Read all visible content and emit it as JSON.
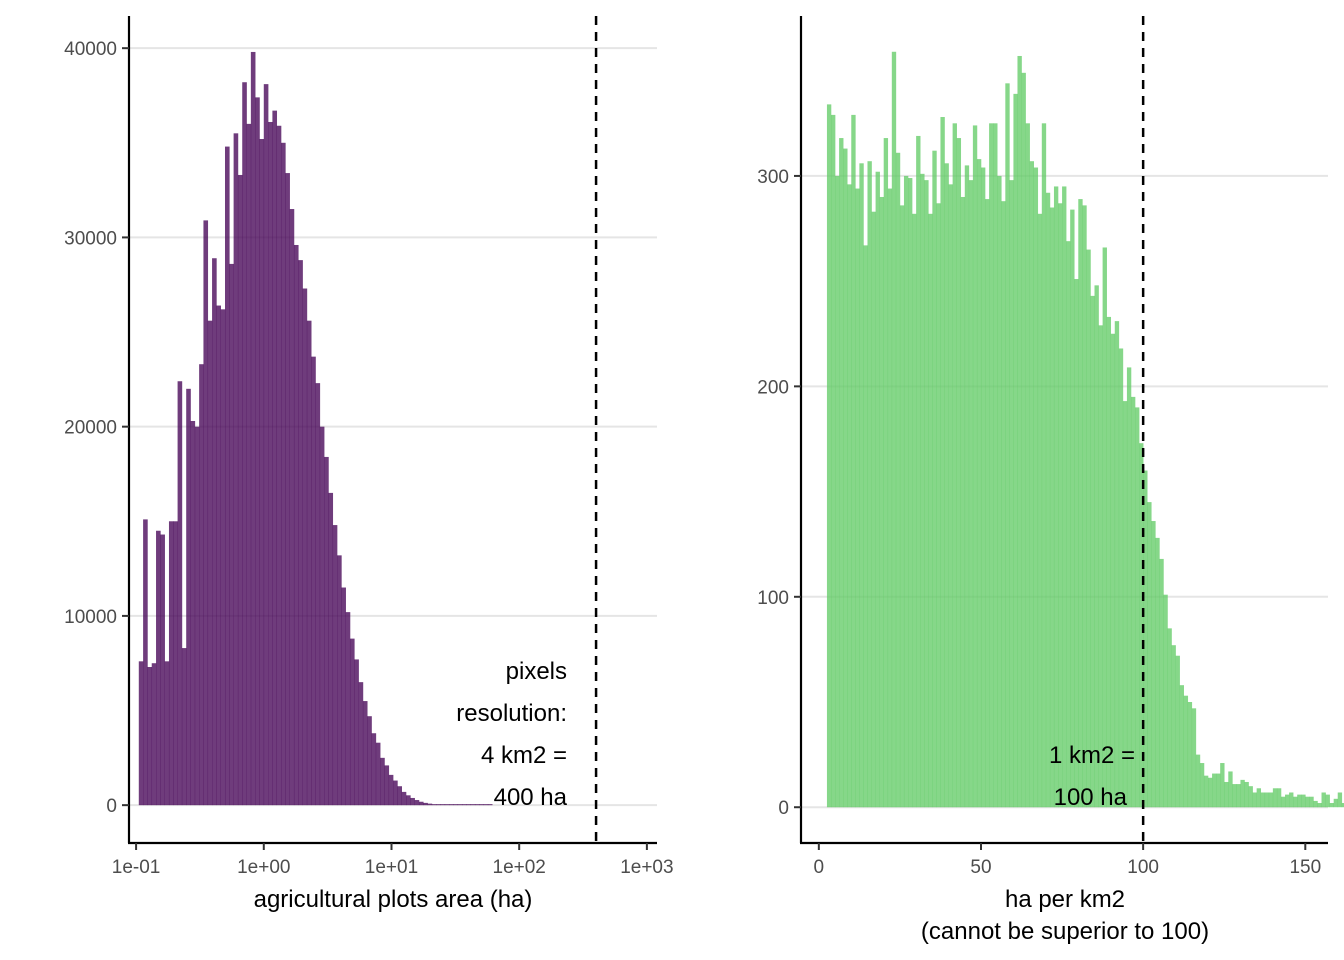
{
  "chart_data": [
    {
      "type": "bar",
      "x_scale": "log10",
      "bar_color": "#440154",
      "bar_opacity": 0.77,
      "xlabel": "agricultural plots area (ha)",
      "ylabel": "",
      "grid": "horizontal major",
      "x_ticks": [
        0.1,
        1,
        10,
        100,
        1000
      ],
      "x_tick_labels": [
        "1e-01",
        "1e+00",
        "1e+01",
        "1e+02",
        "1e+03"
      ],
      "xlim": [
        0.088,
        1200
      ],
      "y_ticks": [
        0,
        10000,
        20000,
        30000,
        40000
      ],
      "y_tick_labels": [
        "0",
        "10000",
        "20000",
        "30000",
        "40000"
      ],
      "ylim": [
        -2000,
        41700
      ],
      "bin_start": 0.105,
      "bin_width_log10": 0.03375,
      "values": [
        7600,
        15100,
        7300,
        7500,
        14500,
        14300,
        7600,
        15000,
        15000,
        22400,
        8300,
        22000,
        20300,
        20000,
        23300,
        30900,
        25600,
        28900,
        26400,
        26200,
        34800,
        28600,
        35500,
        33300,
        38200,
        36000,
        39800,
        37400,
        35200,
        38100,
        36100,
        36700,
        35900,
        35000,
        33400,
        31500,
        29600,
        28800,
        27300,
        25600,
        23700,
        22300,
        20000,
        18400,
        16500,
        14800,
        13200,
        11500,
        10200,
        8800,
        7700,
        6500,
        5500,
        4700,
        3800,
        3300,
        2500,
        2100,
        1600,
        1300,
        1000,
        700,
        520,
        380,
        270,
        180,
        120,
        80,
        50,
        30,
        20,
        15,
        10,
        8,
        5,
        4,
        3,
        3,
        2,
        2,
        2,
        2,
        0,
        0,
        0,
        0,
        0,
        0,
        0,
        0,
        0,
        0,
        0,
        0,
        0,
        0,
        0,
        0,
        0,
        0,
        0,
        0,
        0,
        0,
        0,
        0
      ],
      "vline": {
        "x": 400,
        "style": "dashed"
      },
      "annotation": [
        "pixels",
        "resolution:",
        "4 km2 =",
        "400 ha"
      ]
    },
    {
      "type": "bar",
      "x_scale": "linear",
      "bar_color": "#5ec962",
      "bar_opacity": 0.75,
      "xlabel_lines": [
        "ha per km2",
        "(cannot be superior to 100)"
      ],
      "ylabel": "",
      "grid": "horizontal major",
      "x_ticks": [
        0,
        50,
        100,
        150
      ],
      "x_tick_labels": [
        "0",
        "50",
        "100",
        "150"
      ],
      "xlim": [
        -5.5,
        157
      ],
      "y_ticks": [
        0,
        100,
        200,
        300
      ],
      "y_tick_labels": [
        "0",
        "100",
        "200",
        "300"
      ],
      "ylim": [
        -17,
        376
      ],
      "bin_start": 2.5,
      "bin_width": 1.25,
      "values": [
        334,
        329,
        300,
        318,
        313,
        296,
        329,
        294,
        306,
        267,
        307,
        283,
        302,
        290,
        318,
        294,
        359,
        311,
        286,
        300,
        299,
        282,
        319,
        301,
        298,
        282,
        312,
        287,
        328,
        306,
        296,
        325,
        318,
        290,
        305,
        298,
        324,
        308,
        304,
        289,
        325,
        325,
        300,
        288,
        344,
        298,
        339,
        357,
        349,
        325,
        307,
        304,
        282,
        325,
        292,
        285,
        295,
        287,
        295,
        269,
        284,
        251,
        289,
        286,
        265,
        243,
        248,
        229,
        266,
        233,
        225,
        231,
        218,
        193,
        209,
        195,
        190,
        173,
        160,
        145,
        136,
        128,
        118,
        101,
        85,
        77,
        72,
        58,
        53,
        50,
        47,
        25,
        21,
        15,
        14,
        16,
        16,
        21,
        12,
        17,
        11,
        11,
        13,
        12,
        10,
        7,
        9,
        7,
        7,
        7,
        9,
        9,
        5,
        6,
        7,
        5,
        6,
        6,
        5,
        5,
        3,
        2,
        7,
        6,
        2,
        4,
        7,
        2,
        3,
        5,
        5,
        2,
        1,
        5,
        5,
        2,
        0,
        1,
        3,
        2,
        4,
        0,
        1,
        3,
        1,
        4,
        1,
        0,
        2,
        1,
        3,
        0,
        1,
        1,
        1,
        2,
        0,
        3,
        1,
        3,
        0,
        1,
        2,
        1,
        5,
        0,
        2,
        1,
        1,
        2,
        5,
        1,
        1,
        0,
        2,
        1,
        1,
        4,
        2,
        1,
        2,
        3,
        2,
        1,
        2,
        3,
        1,
        2,
        2,
        1,
        4,
        1,
        1,
        1,
        1,
        1,
        3,
        2,
        2,
        1,
        3,
        1,
        2,
        2,
        1,
        2,
        2,
        2,
        2,
        1,
        1,
        4,
        2,
        1,
        2,
        1,
        2,
        2,
        1,
        2,
        1,
        1,
        3,
        1,
        1,
        3,
        2,
        1,
        1,
        2,
        2,
        1
      ],
      "vline": {
        "x": 100,
        "style": "dashed"
      },
      "annotation": [
        "1 km2 =",
        "100 ha"
      ]
    }
  ]
}
